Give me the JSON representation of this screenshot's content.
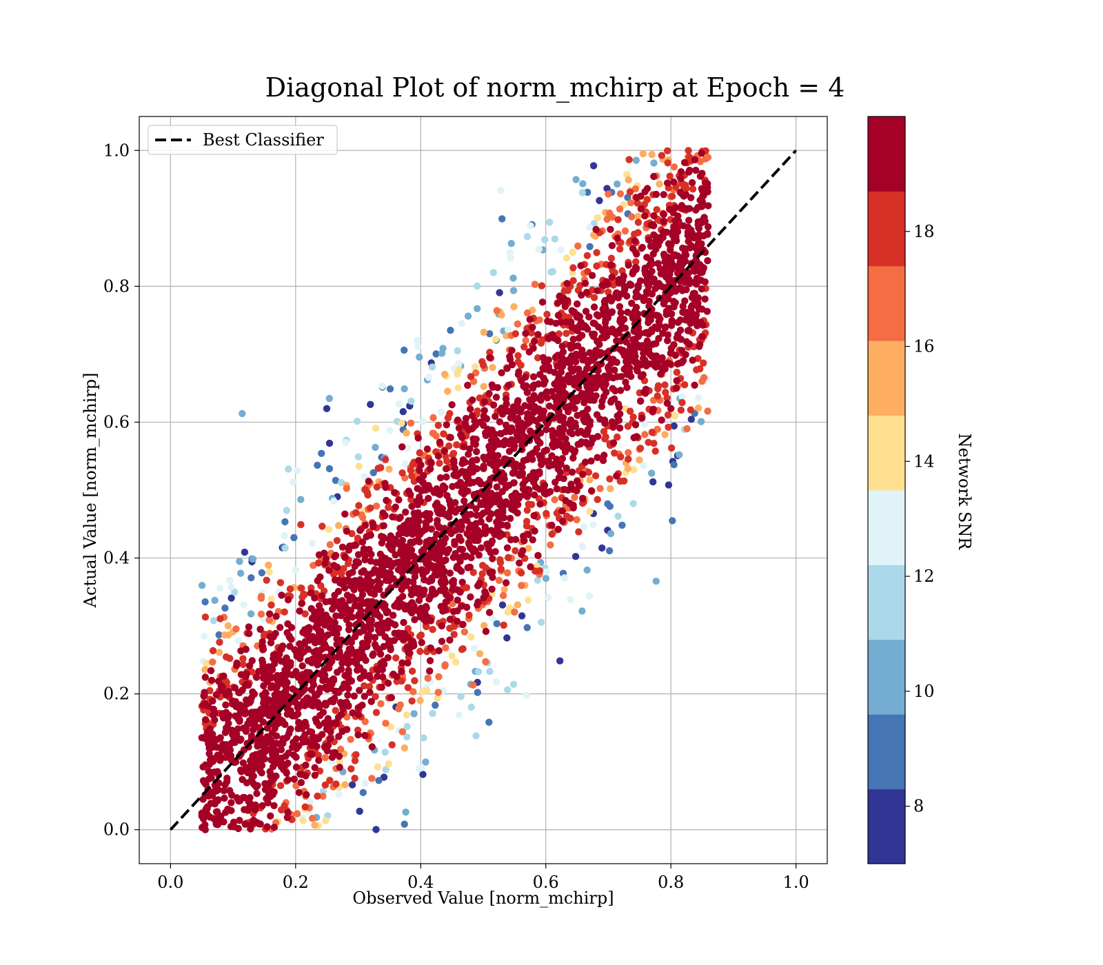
{
  "chart_data": {
    "type": "scatter",
    "title": "Diagonal Plot of norm_mchirp at Epoch = 4",
    "xlabel": "Observed Value [norm_mchirp]",
    "ylabel": "Actual Value [norm_mchirp]",
    "xlim": [
      -0.05,
      1.05
    ],
    "ylim": [
      -0.05,
      1.05
    ],
    "x_ticks": [
      "0.0",
      "0.2",
      "0.4",
      "0.6",
      "0.8",
      "1.0"
    ],
    "y_ticks": [
      "0.0",
      "0.2",
      "0.4",
      "0.6",
      "0.8",
      "1.0"
    ],
    "grid": true,
    "legend": {
      "position": "top-left",
      "entries": [
        {
          "label": "Best Classifier",
          "style": "dashed",
          "color": "#000000"
        }
      ]
    },
    "reference_line": {
      "name": "Best Classifier",
      "x": [
        0.0,
        1.0
      ],
      "y": [
        0.0,
        1.0
      ]
    },
    "colorbar": {
      "label": "Network SNR",
      "range": [
        7,
        20
      ],
      "tick_values": [
        8,
        10,
        12,
        14,
        16,
        18
      ],
      "tick_labels": [
        "8",
        "10",
        "12",
        "14",
        "16",
        "18"
      ],
      "colors": [
        "#313695",
        "#4575b4",
        "#74add1",
        "#abd9e9",
        "#e0f3f8",
        "#fee090",
        "#fdae61",
        "#f46d43",
        "#d73027",
        "#a50026"
      ]
    },
    "point_distribution": {
      "x_range": [
        0.05,
        0.86
      ],
      "y_range": [
        0.0,
        1.0
      ],
      "main_snr_value": 20,
      "note_band_high_snr_along_diagonal": true
    }
  }
}
